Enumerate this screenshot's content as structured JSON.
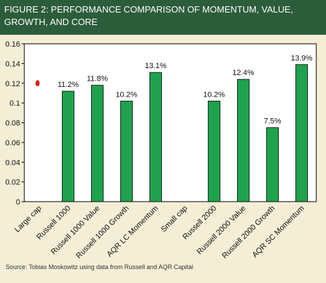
{
  "chart_data": {
    "type": "bar",
    "title": "FIGURE 2:  PERFORMANCE COMPARISON OF MOMENTUM, VALUE, GROWTH, AND CORE",
    "source": "Source:  Tobias Moskowitz using data from Russell and AQR Capital",
    "categories": [
      "Large cap",
      "Russell 1000",
      "Russell 1000 Value",
      "Russell 1000 Growth",
      "AQR LC Momentum",
      "Small cap",
      "Russell 2000",
      "Russell 2000 Value",
      "Russell 2000 Growth",
      "AQR SC Momentum"
    ],
    "values": [
      null,
      0.112,
      0.118,
      0.102,
      0.131,
      null,
      0.102,
      0.124,
      0.075,
      0.139
    ],
    "value_labels": [
      null,
      "11.2%",
      "11.8%",
      "10.2%",
      "13.1%",
      null,
      "10.2%",
      "12.4%",
      "7.5%",
      "13.9%"
    ],
    "color": "#1fa24d",
    "markers": [
      {
        "x": "Large cap",
        "y": 0.12,
        "color": "#e0201b"
      }
    ],
    "ylim": [
      0,
      0.16
    ],
    "yticks": [
      0,
      0.02,
      0.04,
      0.06,
      0.08,
      0.1,
      0.12,
      0.14,
      0.16
    ]
  }
}
